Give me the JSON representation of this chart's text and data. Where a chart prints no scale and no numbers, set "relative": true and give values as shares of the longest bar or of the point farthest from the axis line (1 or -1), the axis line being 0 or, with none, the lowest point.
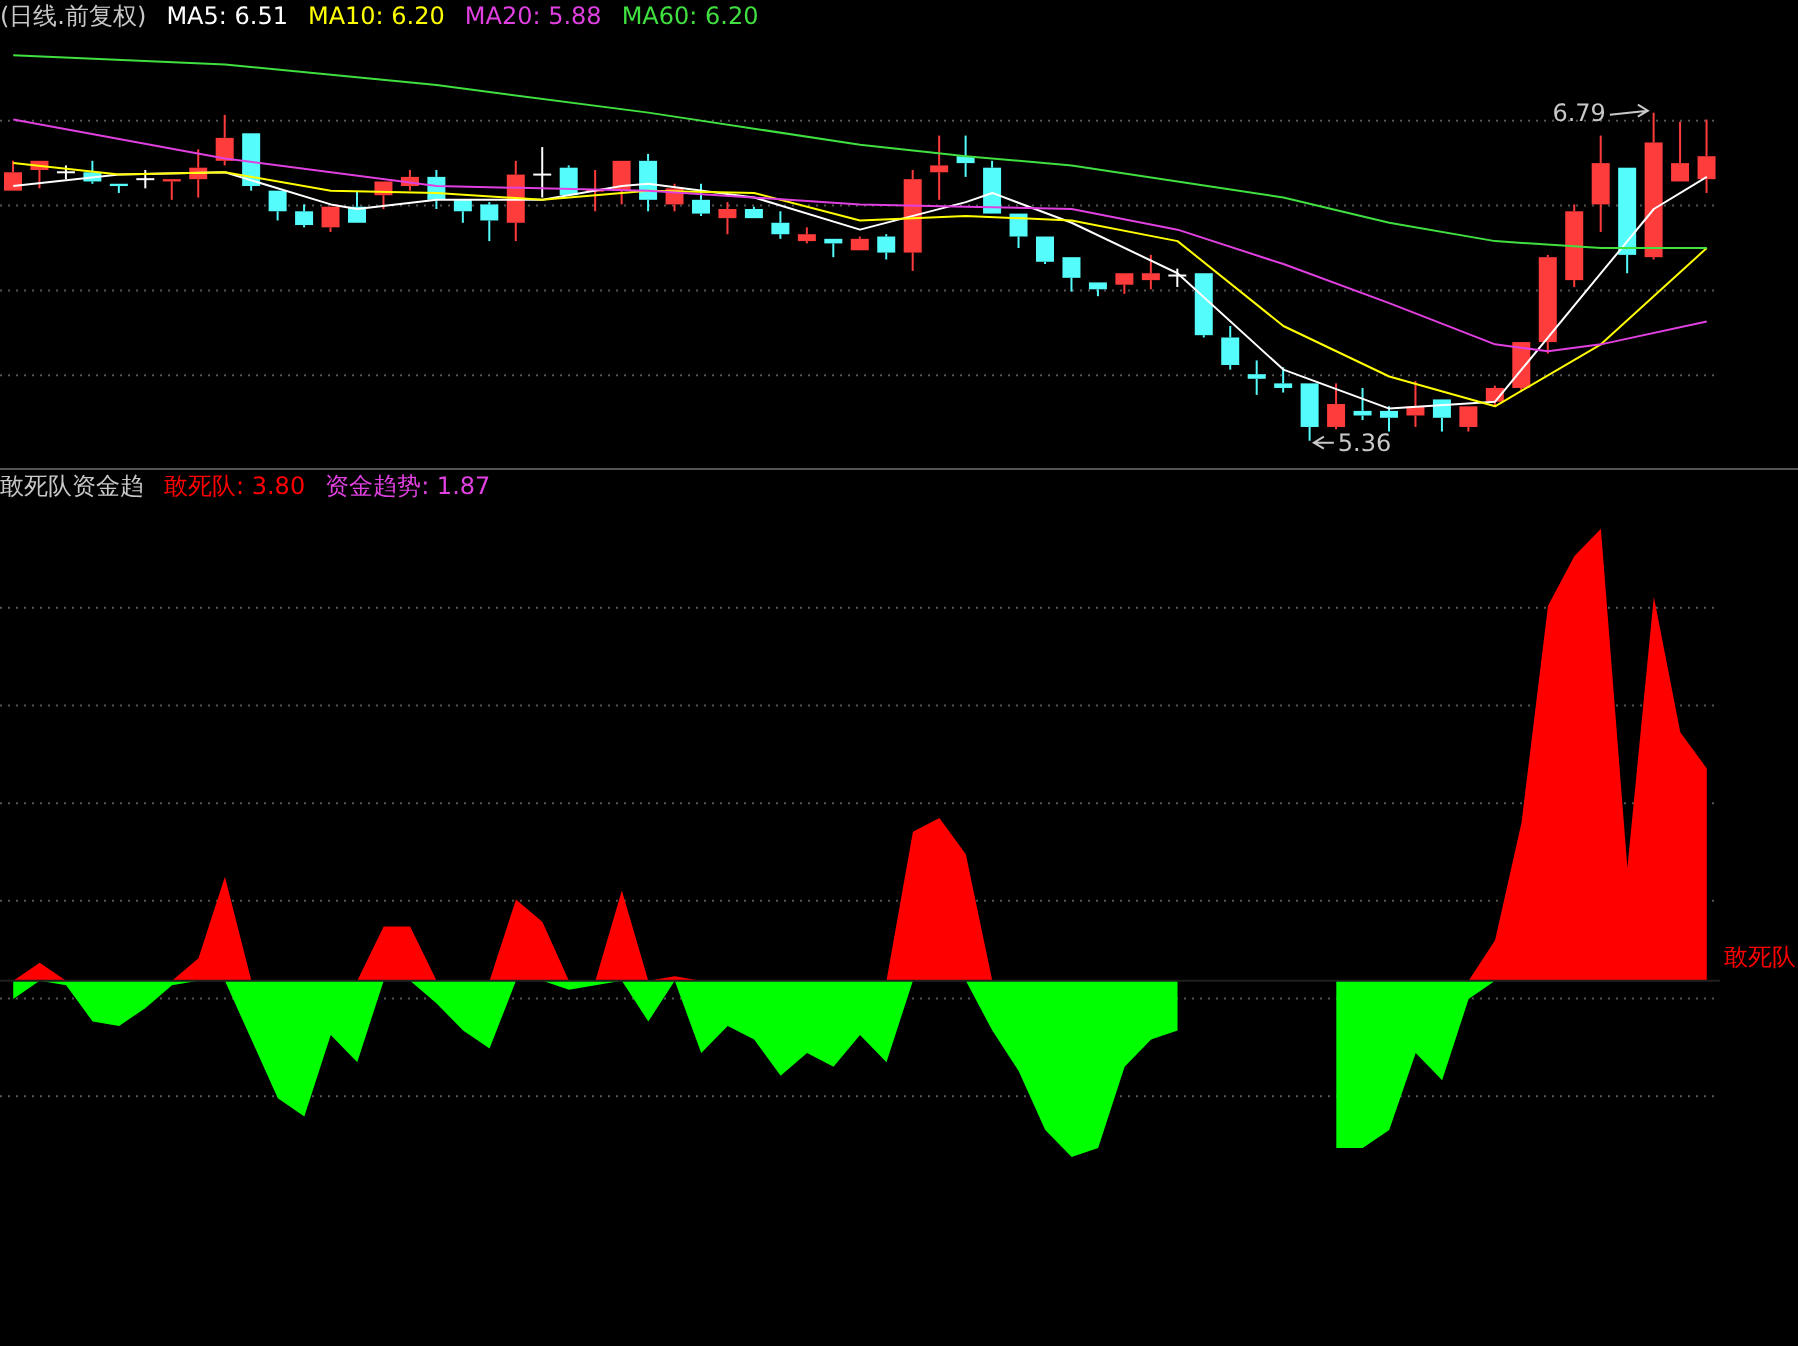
{
  "chart_data": [
    {
      "type": "candlestick",
      "title": "(日线.前复权)",
      "grid": true,
      "categories": [
        null,
        null,
        null,
        null,
        null,
        null,
        null,
        null,
        null,
        null,
        null,
        null,
        null,
        null,
        null,
        null,
        null,
        null,
        null,
        null,
        null,
        null,
        null,
        null,
        null,
        null,
        null,
        null,
        null,
        null,
        null,
        null,
        null,
        null,
        null,
        null,
        null,
        null,
        null,
        null,
        null,
        null,
        null,
        null,
        null,
        null,
        null,
        null,
        null,
        null,
        null,
        null,
        null,
        null,
        null,
        null,
        null,
        null,
        null,
        null,
        null,
        null,
        null,
        null,
        null
      ],
      "ohlc": [
        [
          6.45,
          6.58,
          6.45,
          6.53
        ],
        [
          6.54,
          6.58,
          6.46,
          6.58
        ],
        [
          6.53,
          6.56,
          6.5,
          6.53
        ],
        [
          6.53,
          6.58,
          6.48,
          6.49
        ],
        [
          6.48,
          6.48,
          6.44,
          6.47
        ],
        [
          6.5,
          6.54,
          6.46,
          6.5
        ],
        [
          6.49,
          6.5,
          6.41,
          6.5
        ],
        [
          6.5,
          6.63,
          6.42,
          6.55
        ],
        [
          6.58,
          6.78,
          6.56,
          6.68
        ],
        [
          6.7,
          6.7,
          6.45,
          6.47
        ],
        [
          6.45,
          6.45,
          6.32,
          6.36
        ],
        [
          6.36,
          6.39,
          6.29,
          6.3
        ],
        [
          6.29,
          6.38,
          6.27,
          6.38
        ],
        [
          6.38,
          6.45,
          6.31,
          6.31
        ],
        [
          6.43,
          6.49,
          6.37,
          6.49
        ],
        [
          6.47,
          6.54,
          6.45,
          6.51
        ],
        [
          6.51,
          6.54,
          6.37,
          6.41
        ],
        [
          6.41,
          6.41,
          6.31,
          6.36
        ],
        [
          6.39,
          6.4,
          6.23,
          6.32
        ],
        [
          6.31,
          6.58,
          6.23,
          6.52
        ],
        [
          6.52,
          6.64,
          6.42,
          6.52
        ],
        [
          6.55,
          6.56,
          6.43,
          6.43
        ],
        [
          6.45,
          6.54,
          6.36,
          6.45
        ],
        [
          6.45,
          6.58,
          6.39,
          6.58
        ],
        [
          6.58,
          6.61,
          6.36,
          6.41
        ],
        [
          6.39,
          6.48,
          6.36,
          6.46
        ],
        [
          6.41,
          6.48,
          6.34,
          6.35
        ],
        [
          6.33,
          6.4,
          6.26,
          6.37
        ],
        [
          6.37,
          6.38,
          6.33,
          6.33
        ],
        [
          6.31,
          6.36,
          6.24,
          6.26
        ],
        [
          6.23,
          6.29,
          6.22,
          6.26
        ],
        [
          6.24,
          6.24,
          6.16,
          6.22
        ],
        [
          6.19,
          6.25,
          6.19,
          6.24
        ],
        [
          6.25,
          6.26,
          6.15,
          6.18
        ],
        [
          6.18,
          6.54,
          6.1,
          6.5
        ],
        [
          6.53,
          6.69,
          6.41,
          6.56
        ],
        [
          6.6,
          6.69,
          6.51,
          6.57
        ],
        [
          6.55,
          6.58,
          6.35,
          6.35
        ],
        [
          6.35,
          6.35,
          6.2,
          6.25
        ],
        [
          6.25,
          6.25,
          6.13,
          6.14
        ],
        [
          6.16,
          6.16,
          6.01,
          6.07
        ],
        [
          6.05,
          6.05,
          5.99,
          6.02
        ],
        [
          6.04,
          6.09,
          6.0,
          6.09
        ],
        [
          6.06,
          6.17,
          6.02,
          6.09
        ],
        [
          6.08,
          6.11,
          6.03,
          6.08
        ],
        [
          6.09,
          6.09,
          5.81,
          5.82
        ],
        [
          5.81,
          5.86,
          5.67,
          5.69
        ],
        [
          5.65,
          5.71,
          5.56,
          5.63
        ],
        [
          5.61,
          5.68,
          5.57,
          5.59
        ],
        [
          5.61,
          5.61,
          5.36,
          5.42
        ],
        [
          5.42,
          5.61,
          5.41,
          5.52
        ],
        [
          5.49,
          5.59,
          5.45,
          5.47
        ],
        [
          5.49,
          5.51,
          5.4,
          5.46
        ],
        [
          5.47,
          5.62,
          5.42,
          5.51
        ],
        [
          5.54,
          5.54,
          5.4,
          5.46
        ],
        [
          5.42,
          5.51,
          5.4,
          5.51
        ],
        [
          5.53,
          5.6,
          5.51,
          5.59
        ],
        [
          5.59,
          5.79,
          5.58,
          5.79
        ],
        [
          5.79,
          6.17,
          5.74,
          6.16
        ],
        [
          6.06,
          6.39,
          6.03,
          6.36
        ],
        [
          6.39,
          6.69,
          6.27,
          6.57
        ],
        [
          6.55,
          6.55,
          6.09,
          6.17
        ],
        [
          6.16,
          6.79,
          6.15,
          6.66
        ],
        [
          6.49,
          6.75,
          6.49,
          6.57
        ],
        [
          6.5,
          6.76,
          6.44,
          6.6
        ]
      ],
      "colors": [
        "#ff3c3c",
        "#ff3c3c",
        "#ffffff",
        "#54fcfc",
        "#54fcfc",
        "#ffffff",
        "#ff3c3c",
        "#ff3c3c",
        "#ff3c3c",
        "#54fcfc",
        "#54fcfc",
        "#54fcfc",
        "#ff3c3c",
        "#54fcfc",
        "#ff3c3c",
        "#ff3c3c",
        "#54fcfc",
        "#54fcfc",
        "#54fcfc",
        "#ff3c3c",
        "#ffffff",
        "#54fcfc",
        "#ff3c3c",
        "#ff3c3c",
        "#54fcfc",
        "#ff3c3c",
        "#54fcfc",
        "#ff3c3c",
        "#54fcfc",
        "#54fcfc",
        "#ff3c3c",
        "#54fcfc",
        "#ff3c3c",
        "#54fcfc",
        "#ff3c3c",
        "#ff3c3c",
        "#54fcfc",
        "#54fcfc",
        "#54fcfc",
        "#54fcfc",
        "#54fcfc",
        "#54fcfc",
        "#ff3c3c",
        "#ff3c3c",
        "#ffffff",
        "#54fcfc",
        "#54fcfc",
        "#54fcfc",
        "#54fcfc",
        "#54fcfc",
        "#ff3c3c",
        "#54fcfc",
        "#54fcfc",
        "#ff3c3c",
        "#54fcfc",
        "#ff3c3c",
        "#ff3c3c",
        "#ff3c3c",
        "#ff3c3c",
        "#ff3c3c",
        "#ff3c3c",
        "#54fcfc",
        "#ff3c3c",
        "#ff3c3c",
        "#ff3c3c"
      ],
      "series": [
        {
          "name": "MA5: 6.51",
          "type": "line",
          "color": "#ffffff",
          "values": [
            6.47,
            null,
            null,
            null,
            6.52,
            null,
            null,
            null,
            6.53,
            null,
            null,
            null,
            6.39,
            6.37,
            null,
            null,
            6.41,
            null,
            null,
            null,
            6.41,
            null,
            null,
            6.47,
            6.48,
            null,
            null,
            null,
            6.42,
            null,
            null,
            null,
            6.28,
            null,
            null,
            null,
            6.4,
            6.44,
            null,
            null,
            6.31,
            null,
            null,
            null,
            6.09,
            null,
            null,
            null,
            5.67,
            null,
            null,
            null,
            5.5,
            null,
            null,
            null,
            5.53,
            null,
            null,
            null,
            6.09,
            null,
            6.37,
            null,
            6.51
          ]
        },
        {
          "name": "MA10: 6.20",
          "type": "line",
          "color": "#ffff00",
          "values": [
            6.57,
            null,
            null,
            null,
            6.52,
            null,
            null,
            null,
            6.53,
            null,
            null,
            null,
            6.45,
            null,
            null,
            null,
            6.44,
            null,
            null,
            null,
            6.41,
            null,
            null,
            null,
            6.45,
            null,
            null,
            null,
            6.44,
            null,
            null,
            null,
            6.32,
            null,
            null,
            null,
            6.34,
            null,
            null,
            null,
            6.32,
            null,
            null,
            null,
            6.23,
            null,
            null,
            null,
            5.86,
            null,
            null,
            null,
            5.64,
            null,
            null,
            null,
            5.51,
            null,
            null,
            null,
            5.78,
            null,
            null,
            null,
            6.2
          ]
        },
        {
          "name": "MA20: 5.88",
          "type": "line",
          "color": "#e040e0",
          "values": [
            6.76,
            null,
            null,
            null,
            null,
            null,
            null,
            null,
            6.59,
            null,
            null,
            null,
            null,
            null,
            null,
            null,
            6.47,
            null,
            null,
            null,
            null,
            null,
            null,
            null,
            6.45,
            null,
            null,
            null,
            null,
            null,
            null,
            null,
            6.39,
            null,
            null,
            null,
            6.38,
            null,
            null,
            null,
            6.37,
            null,
            null,
            null,
            6.28,
            null,
            null,
            null,
            6.13,
            null,
            null,
            null,
            5.96,
            null,
            null,
            null,
            5.78,
            null,
            5.75,
            null,
            5.78,
            null,
            null,
            null,
            5.88
          ]
        },
        {
          "name": "MA60: 6.20",
          "type": "line",
          "color": "#40e040",
          "values": [
            7.04,
            null,
            null,
            null,
            null,
            null,
            null,
            null,
            7.0,
            null,
            null,
            null,
            null,
            null,
            null,
            null,
            6.91,
            null,
            null,
            null,
            null,
            null,
            null,
            null,
            6.79,
            null,
            null,
            null,
            null,
            null,
            null,
            null,
            6.65,
            null,
            null,
            null,
            6.6,
            null,
            null,
            null,
            6.56,
            null,
            null,
            null,
            6.49,
            null,
            null,
            null,
            6.42,
            null,
            null,
            null,
            6.31,
            null,
            null,
            null,
            6.23,
            null,
            null,
            null,
            6.2,
            null,
            null,
            null,
            6.2
          ]
        }
      ],
      "annotations": [
        "6.79",
        "5.36"
      ]
    },
    {
      "type": "area",
      "title": "敢死队资金趋",
      "relative": true,
      "grid": true,
      "categories": [
        null,
        null,
        null,
        null,
        null,
        null,
        null,
        null,
        null,
        null,
        null,
        null,
        null,
        null,
        null,
        null,
        null,
        null,
        null,
        null,
        null,
        null,
        null,
        null,
        null,
        null,
        null,
        null,
        null,
        null,
        null,
        null,
        null,
        null,
        null,
        null,
        null,
        null,
        null,
        null,
        null,
        null,
        null,
        null,
        null,
        null,
        null,
        null,
        null,
        null,
        null,
        null,
        null,
        null,
        null,
        null,
        null,
        null,
        null,
        null,
        null,
        null,
        null,
        null,
        null
      ],
      "series": [
        {
          "name": "敢死队",
          "color": "#ff0000",
          "values": [
            0,
            0.04,
            0,
            0,
            0,
            0,
            0,
            0.05,
            0.23,
            0,
            0,
            0,
            0,
            0,
            0.12,
            0.12,
            0,
            0,
            0,
            0.18,
            0.13,
            0,
            0,
            0.2,
            0,
            0.01,
            0,
            0,
            0,
            0,
            0,
            0,
            0,
            0,
            0.33,
            0.36,
            0.28,
            0,
            0,
            0,
            0,
            0,
            0,
            0,
            0,
            0,
            0,
            0,
            0,
            0,
            0,
            0,
            0,
            0,
            0,
            0,
            0.09,
            0.35,
            0.83,
            0.94,
            1.0,
            0.25,
            0.85,
            0.55,
            0.47
          ]
        },
        {
          "color": "#00ff00",
          "values": [
            -0.04,
            0,
            -0.01,
            -0.09,
            -0.1,
            -0.06,
            -0.01,
            0,
            0,
            -0.13,
            -0.26,
            -0.3,
            -0.12,
            -0.18,
            0,
            0,
            -0.05,
            -0.11,
            -0.15,
            0,
            0,
            -0.02,
            -0.01,
            0,
            -0.09,
            0,
            -0.16,
            -0.1,
            -0.13,
            -0.21,
            -0.16,
            -0.19,
            -0.12,
            -0.18,
            0,
            0,
            0,
            -0.11,
            -0.2,
            -0.33,
            -0.39,
            -0.37,
            -0.19,
            -0.13,
            -0.11,
            null,
            null,
            null,
            null,
            null,
            -0.37,
            -0.37,
            -0.33,
            -0.16,
            -0.22,
            -0.04,
            0,
            0,
            0,
            0,
            0,
            0,
            0,
            0,
            0
          ]
        }
      ],
      "annotations": [
        "敢死队: 3.80",
        "资金趋势: 1.87"
      ]
    }
  ]
}
